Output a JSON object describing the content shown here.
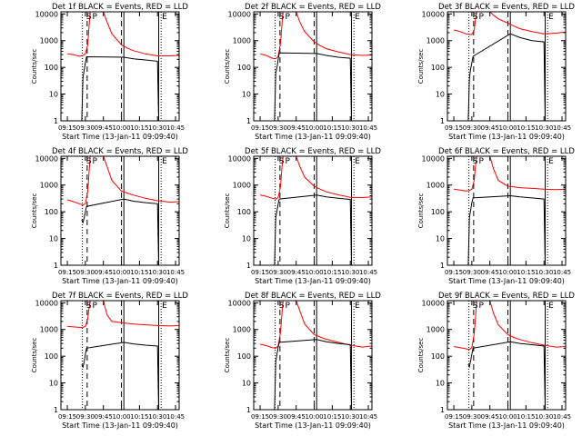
{
  "figure": {
    "ylabel": "Counts/sec",
    "xlabel": "Start Time (13-Jan-11 09:09:40)",
    "x_tick_labels": [
      "09:15",
      "09:30",
      "09:45",
      "10:00",
      "10:15",
      "10:30",
      "10:45"
    ],
    "y_tick_labels": [
      "1",
      "10",
      "100",
      "1000",
      "10000"
    ],
    "colors": {
      "events": "#000000",
      "lld": "#ff0000",
      "axes": "#000000",
      "background": "#ffffff"
    }
  },
  "chart_data": [
    {
      "type": "line",
      "title": "Det 1f BLACK = Events, RED = LLD",
      "xlabel": "Start Time (13-Jan-11 09:09:40)",
      "ylabel": "Counts/sec",
      "xlim": [
        "09:09:40",
        "10:48"
      ],
      "ylim": [
        1,
        12000
      ],
      "yscale": "log",
      "markers": [
        {
          "time": "09:30",
          "label": "S"
        },
        {
          "time": "09:35",
          "label": "P"
        },
        {
          "time": "10:33",
          "label": "E"
        }
      ],
      "vlines_dotted": [
        "09:27:30",
        "10:33"
      ],
      "vlines_dashed": [
        "09:31:30",
        "10:00"
      ],
      "vlines_solid": [
        "10:02",
        "10:31"
      ],
      "series": [
        {
          "name": "Events",
          "color": "#000000",
          "x": [
            "09:27",
            "09:28",
            "09:29",
            "09:30",
            "09:31",
            "10:02",
            "10:10",
            "10:20",
            "10:30",
            "10:31"
          ],
          "y": [
            1,
            40,
            80,
            150,
            250,
            240,
            210,
            190,
            170,
            1
          ]
        },
        {
          "name": "LLD",
          "color": "#ff0000",
          "x": [
            "09:15",
            "09:20",
            "09:25",
            "09:28",
            "09:30",
            "09:32",
            "09:33",
            "09:34",
            "09:45",
            "09:48",
            "09:52",
            "10:00",
            "10:05",
            "10:10",
            "10:20",
            "10:30",
            "10:40",
            "10:48"
          ],
          "y": [
            320,
            300,
            260,
            280,
            320,
            700,
            3000,
            12000,
            12000,
            5000,
            1800,
            700,
            520,
            420,
            320,
            270,
            270,
            280
          ]
        }
      ]
    },
    {
      "type": "line",
      "title": "Det 2f BLACK = Events, RED = LLD",
      "xlabel": "Start Time (13-Jan-11 09:09:40)",
      "ylabel": "Counts/sec",
      "xlim": [
        "09:09:40",
        "10:48"
      ],
      "ylim": [
        1,
        12000
      ],
      "yscale": "log",
      "markers": [
        {
          "time": "09:30",
          "label": "S"
        },
        {
          "time": "09:35",
          "label": "P"
        },
        {
          "time": "10:33",
          "label": "E"
        }
      ],
      "vlines_dotted": [
        "09:27:30",
        "10:33"
      ],
      "vlines_dashed": [
        "09:31:30",
        "10:00"
      ],
      "vlines_solid": [
        "10:02",
        "10:31"
      ],
      "series": [
        {
          "name": "Events",
          "color": "#000000",
          "x": [
            "09:27",
            "09:28",
            "09:29",
            "09:30",
            "09:31",
            "10:02",
            "10:10",
            "10:20",
            "10:30",
            "10:31"
          ],
          "y": [
            1,
            60,
            100,
            200,
            350,
            330,
            280,
            240,
            220,
            1
          ]
        },
        {
          "name": "LLD",
          "color": "#ff0000",
          "x": [
            "09:15",
            "09:20",
            "09:25",
            "09:28",
            "09:30",
            "09:32",
            "09:33",
            "09:34",
            "09:45",
            "09:48",
            "09:52",
            "10:00",
            "10:05",
            "10:10",
            "10:20",
            "10:30",
            "10:40",
            "10:48"
          ],
          "y": [
            320,
            280,
            220,
            210,
            260,
            800,
            3000,
            12000,
            12000,
            5000,
            2200,
            900,
            650,
            500,
            380,
            300,
            280,
            290
          ]
        }
      ]
    },
    {
      "type": "line",
      "title": "Det 3f BLACK = Events, RED = LLD",
      "xlabel": "Start Time (13-Jan-11 09:09:40)",
      "ylabel": "Counts/sec",
      "xlim": [
        "09:09:40",
        "10:48"
      ],
      "ylim": [
        1,
        12000
      ],
      "yscale": "log",
      "markers": [
        {
          "time": "09:30",
          "label": "S"
        },
        {
          "time": "09:35",
          "label": "P"
        },
        {
          "time": "10:33",
          "label": "E"
        }
      ],
      "vlines_dotted": [
        "09:27:30",
        "10:33"
      ],
      "vlines_dashed": [
        "09:31:30",
        "10:00"
      ],
      "vlines_solid": [
        "10:02",
        "10:31"
      ],
      "series": [
        {
          "name": "Events",
          "color": "#000000",
          "x": [
            "09:27",
            "09:28",
            "09:29",
            "09:30",
            "09:31",
            "10:02",
            "10:10",
            "10:20",
            "10:30",
            "10:31"
          ],
          "y": [
            1,
            40,
            90,
            150,
            260,
            1800,
            1300,
            1000,
            900,
            1
          ]
        },
        {
          "name": "LLD",
          "color": "#ff0000",
          "x": [
            "09:15",
            "09:20",
            "09:25",
            "09:28",
            "09:30",
            "09:32",
            "09:33",
            "09:34",
            "09:45",
            "09:48",
            "09:52",
            "10:00",
            "10:05",
            "10:10",
            "10:20",
            "10:30",
            "10:40",
            "10:48"
          ],
          "y": [
            2500,
            2200,
            1800,
            1700,
            1700,
            2500,
            6000,
            12000,
            12000,
            9000,
            6500,
            4500,
            3500,
            2800,
            2200,
            1800,
            1900,
            2100
          ]
        }
      ]
    },
    {
      "type": "line",
      "title": "Det 4f BLACK = Events, RED = LLD",
      "xlabel": "Start Time (13-Jan-11 09:09:40)",
      "ylabel": "Counts/sec",
      "xlim": [
        "09:09:40",
        "10:48"
      ],
      "ylim": [
        1,
        12000
      ],
      "yscale": "log",
      "markers": [
        {
          "time": "09:30",
          "label": "S"
        },
        {
          "time": "09:35",
          "label": "P"
        },
        {
          "time": "10:33",
          "label": "E"
        }
      ],
      "vlines_dotted": [
        "09:27:30",
        "10:33"
      ],
      "vlines_dashed": [
        "09:31:30",
        "10:00"
      ],
      "vlines_solid": [
        "10:02",
        "10:31"
      ],
      "series": [
        {
          "name": "Events",
          "color": "#000000",
          "x": [
            "09:27",
            "09:28",
            "09:29",
            "09:30",
            "09:31",
            "10:02",
            "10:10",
            "10:20",
            "10:30",
            "10:31"
          ],
          "y": [
            50,
            40,
            60,
            100,
            160,
            300,
            250,
            220,
            200,
            1
          ]
        },
        {
          "name": "LLD",
          "color": "#ff0000",
          "x": [
            "09:15",
            "09:20",
            "09:25",
            "09:28",
            "09:30",
            "09:32",
            "09:33",
            "09:34",
            "09:45",
            "09:48",
            "09:52",
            "10:00",
            "10:05",
            "10:10",
            "10:20",
            "10:30",
            "10:40",
            "10:48"
          ],
          "y": [
            280,
            240,
            200,
            180,
            200,
            600,
            2500,
            12000,
            12000,
            5000,
            1500,
            600,
            500,
            420,
            320,
            260,
            230,
            240
          ]
        }
      ]
    },
    {
      "type": "line",
      "title": "Det 5f BLACK = Events, RED = LLD",
      "xlabel": "Start Time (13-Jan-11 09:09:40)",
      "ylabel": "Counts/sec",
      "xlim": [
        "09:09:40",
        "10:48"
      ],
      "ylim": [
        1,
        12000
      ],
      "yscale": "log",
      "markers": [
        {
          "time": "09:30",
          "label": "S"
        },
        {
          "time": "09:35",
          "label": "P"
        },
        {
          "time": "10:33",
          "label": "E"
        }
      ],
      "vlines_dotted": [
        "09:27:30",
        "10:33"
      ],
      "vlines_dashed": [
        "09:31:30",
        "10:00"
      ],
      "vlines_solid": [
        "10:02",
        "10:31"
      ],
      "series": [
        {
          "name": "Events",
          "color": "#000000",
          "x": [
            "09:27",
            "09:28",
            "09:29",
            "09:30",
            "09:31",
            "10:02",
            "10:10",
            "10:20",
            "10:30",
            "10:31"
          ],
          "y": [
            1,
            60,
            110,
            200,
            300,
            420,
            360,
            320,
            290,
            1
          ]
        },
        {
          "name": "LLD",
          "color": "#ff0000",
          "x": [
            "09:15",
            "09:20",
            "09:25",
            "09:28",
            "09:30",
            "09:32",
            "09:33",
            "09:34",
            "09:45",
            "09:48",
            "09:52",
            "10:00",
            "10:05",
            "10:10",
            "10:20",
            "10:30",
            "10:40",
            "10:48"
          ],
          "y": [
            420,
            380,
            320,
            300,
            340,
            900,
            3500,
            12000,
            12000,
            5000,
            2000,
            900,
            700,
            560,
            430,
            350,
            340,
            360
          ]
        }
      ]
    },
    {
      "type": "line",
      "title": "Det 6f BLACK = Events, RED = LLD",
      "xlabel": "Start Time (13-Jan-11 09:09:40)",
      "ylabel": "Counts/sec",
      "xlim": [
        "09:09:40",
        "10:48"
      ],
      "ylim": [
        1,
        12000
      ],
      "yscale": "log",
      "markers": [
        {
          "time": "09:30",
          "label": "S"
        },
        {
          "time": "09:35",
          "label": "P"
        },
        {
          "time": "10:33",
          "label": "E"
        }
      ],
      "vlines_dotted": [
        "09:27:30",
        "10:33"
      ],
      "vlines_dashed": [
        "09:31:30",
        "10:00"
      ],
      "vlines_solid": [
        "10:02",
        "10:31"
      ],
      "series": [
        {
          "name": "Events",
          "color": "#000000",
          "x": [
            "09:27",
            "09:28",
            "09:29",
            "09:30",
            "09:31",
            "10:02",
            "10:10",
            "10:20",
            "10:30",
            "10:31"
          ],
          "y": [
            1,
            60,
            120,
            220,
            330,
            400,
            360,
            330,
            300,
            1
          ]
        },
        {
          "name": "LLD",
          "color": "#ff0000",
          "x": [
            "09:15",
            "09:20",
            "09:25",
            "09:28",
            "09:30",
            "09:32",
            "09:33",
            "09:34",
            "09:45",
            "09:48",
            "09:52",
            "10:00",
            "10:05",
            "10:10",
            "10:20",
            "10:30",
            "10:40",
            "10:48"
          ],
          "y": [
            700,
            650,
            600,
            620,
            700,
            1500,
            5000,
            12000,
            12000,
            4000,
            1500,
            900,
            850,
            800,
            750,
            700,
            680,
            700
          ]
        }
      ]
    },
    {
      "type": "line",
      "title": "Det 7f BLACK = Events, RED = LLD",
      "xlabel": "Start Time (13-Jan-11 09:09:40)",
      "ylabel": "Counts/sec",
      "xlim": [
        "09:09:40",
        "10:48"
      ],
      "ylim": [
        1,
        12000
      ],
      "yscale": "log",
      "markers": [
        {
          "time": "09:30",
          "label": "S"
        },
        {
          "time": "09:35",
          "label": "P"
        },
        {
          "time": "10:33",
          "label": "E"
        }
      ],
      "vlines_dotted": [
        "09:27:30",
        "10:33"
      ],
      "vlines_dashed": [
        "09:31:30",
        "10:00"
      ],
      "vlines_solid": [
        "10:02",
        "10:31"
      ],
      "series": [
        {
          "name": "Events",
          "color": "#000000",
          "x": [
            "09:27",
            "09:28",
            "09:29",
            "09:30",
            "09:31",
            "10:02",
            "10:10",
            "10:20",
            "10:30",
            "10:31"
          ],
          "y": [
            50,
            40,
            60,
            120,
            200,
            330,
            290,
            260,
            240,
            1
          ]
        },
        {
          "name": "LLD",
          "color": "#ff0000",
          "x": [
            "09:15",
            "09:20",
            "09:25",
            "09:28",
            "09:30",
            "09:32",
            "09:33",
            "09:34",
            "09:45",
            "09:48",
            "09:52",
            "10:00",
            "10:05",
            "10:10",
            "10:20",
            "10:30",
            "10:40",
            "10:48"
          ],
          "y": [
            1300,
            1250,
            1200,
            1200,
            1300,
            2500,
            6000,
            12000,
            12000,
            3500,
            2000,
            1800,
            1700,
            1600,
            1500,
            1400,
            1350,
            1400
          ]
        }
      ]
    },
    {
      "type": "line",
      "title": "Det 8f BLACK = Events, RED = LLD",
      "xlabel": "Start Time (13-Jan-11 09:09:40)",
      "ylabel": "Counts/sec",
      "xlim": [
        "09:09:40",
        "10:48"
      ],
      "ylim": [
        1,
        12000
      ],
      "yscale": "log",
      "markers": [
        {
          "time": "09:30",
          "label": "S"
        },
        {
          "time": "09:35",
          "label": "P"
        },
        {
          "time": "10:33",
          "label": "E"
        }
      ],
      "vlines_dotted": [
        "09:27:30",
        "10:33"
      ],
      "vlines_dashed": [
        "09:31:30",
        "10:00"
      ],
      "vlines_solid": [
        "10:02",
        "10:31"
      ],
      "series": [
        {
          "name": "Events",
          "color": "#000000",
          "x": [
            "09:27",
            "09:28",
            "09:29",
            "09:30",
            "09:31",
            "10:02",
            "10:10",
            "10:20",
            "10:30",
            "10:31"
          ],
          "y": [
            1,
            60,
            120,
            220,
            330,
            420,
            350,
            300,
            270,
            1
          ]
        },
        {
          "name": "LLD",
          "color": "#ff0000",
          "x": [
            "09:15",
            "09:20",
            "09:25",
            "09:28",
            "09:30",
            "09:32",
            "09:33",
            "09:34",
            "09:45",
            "09:48",
            "09:52",
            "10:00",
            "10:05",
            "10:10",
            "10:20",
            "10:30",
            "10:40",
            "10:48"
          ],
          "y": [
            280,
            250,
            210,
            200,
            240,
            800,
            3000,
            12000,
            12000,
            5000,
            1600,
            650,
            520,
            430,
            330,
            260,
            220,
            240
          ]
        }
      ]
    },
    {
      "type": "line",
      "title": "Det 9f BLACK = Events, RED = LLD",
      "xlabel": "Start Time (13-Jan-11 09:09:40)",
      "ylabel": "Counts/sec",
      "xlim": [
        "09:09:40",
        "10:48"
      ],
      "ylim": [
        1,
        12000
      ],
      "yscale": "log",
      "markers": [
        {
          "time": "09:30",
          "label": "S"
        },
        {
          "time": "09:35",
          "label": "P"
        },
        {
          "time": "10:33",
          "label": "E"
        }
      ],
      "vlines_dotted": [
        "09:27:30",
        "10:33"
      ],
      "vlines_dashed": [
        "09:31:30",
        "10:00"
      ],
      "vlines_solid": [
        "10:02",
        "10:31"
      ],
      "series": [
        {
          "name": "Events",
          "color": "#000000",
          "x": [
            "09:27",
            "09:28",
            "09:29",
            "09:30",
            "09:31",
            "10:02",
            "10:10",
            "10:20",
            "10:30",
            "10:31"
          ],
          "y": [
            50,
            40,
            70,
            120,
            200,
            350,
            300,
            270,
            240,
            1
          ]
        },
        {
          "name": "LLD",
          "color": "#ff0000",
          "x": [
            "09:15",
            "09:20",
            "09:25",
            "09:28",
            "09:30",
            "09:32",
            "09:33",
            "09:34",
            "09:45",
            "09:48",
            "09:52",
            "10:00",
            "10:05",
            "10:10",
            "10:20",
            "10:30",
            "10:40",
            "10:48"
          ],
          "y": [
            230,
            210,
            190,
            180,
            210,
            700,
            2500,
            12000,
            12000,
            4000,
            1500,
            650,
            500,
            420,
            320,
            260,
            220,
            230
          ]
        }
      ]
    }
  ]
}
